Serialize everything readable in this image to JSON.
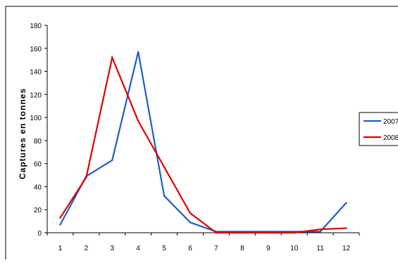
{
  "chart_data": {
    "type": "line",
    "ylabel": "Captures en tonnes",
    "xlabel": "",
    "categories": [
      "1",
      "2",
      "3",
      "4",
      "5",
      "6",
      "7",
      "8",
      "9",
      "10",
      "11",
      "12"
    ],
    "ylim": [
      0,
      180
    ],
    "yticks": [
      "0",
      "20",
      "40",
      "60",
      "80",
      "100",
      "120",
      "140",
      "160",
      "180"
    ],
    "grid": false,
    "legend_position": "right",
    "series": [
      {
        "name": "2007",
        "color": "#1f5fbf",
        "values": [
          7,
          49,
          63,
          157,
          32,
          9,
          1,
          1,
          1,
          1,
          1,
          26
        ]
      },
      {
        "name": "2008",
        "color": "#e00000",
        "values": [
          13,
          48,
          152,
          97,
          57,
          17,
          0,
          0,
          0,
          0,
          3,
          4
        ]
      }
    ]
  }
}
